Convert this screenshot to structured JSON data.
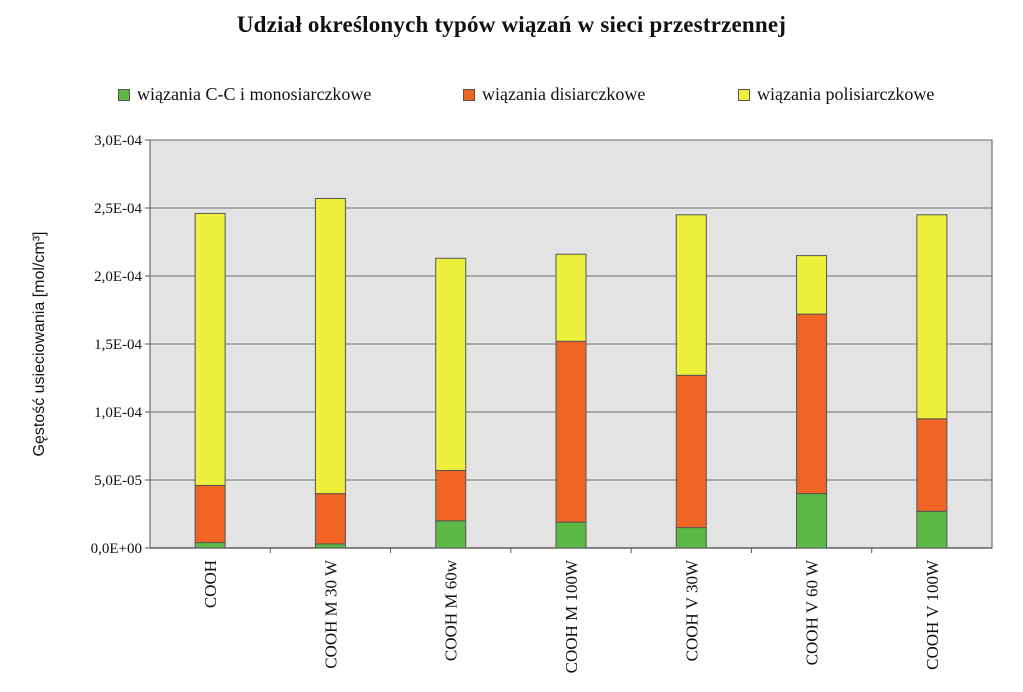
{
  "chart_data": {
    "type": "bar",
    "stacked": true,
    "title": "Udział określonych typów wiązań w sieci przestrzennej",
    "ylabel": "Gęstość usieciowania [mol/cm³]",
    "xlabel": "",
    "ylim": [
      0,
      0.0003
    ],
    "yticks": [
      {
        "value": 0,
        "label": "0,0E+00"
      },
      {
        "value": 5e-05,
        "label": "5,0E-05"
      },
      {
        "value": 0.0001,
        "label": "1,0E-04"
      },
      {
        "value": 0.00015,
        "label": "1,5E-04"
      },
      {
        "value": 0.0002,
        "label": "2,0E-04"
      },
      {
        "value": 0.00025,
        "label": "2,5E-04"
      },
      {
        "value": 0.0003,
        "label": "3,0E-04"
      }
    ],
    "categories": [
      "COOH",
      "COOH M 30 W",
      "COOH M 60w",
      "COOH M 100W",
      "COOH V 30W",
      "COOH V 60 W",
      "COOH V 100W"
    ],
    "series": [
      {
        "name": "wiązania C-C i monosiarczkowe",
        "color": "#5cb946",
        "values": [
          4e-06,
          3e-06,
          2e-05,
          1.9e-05,
          1.5e-05,
          4e-05,
          2.7e-05
        ]
      },
      {
        "name": "wiązania disiarczkowe",
        "color": "#f06424",
        "values": [
          4.2e-05,
          3.7e-05,
          3.7e-05,
          0.000133,
          0.000112,
          0.000132,
          6.8e-05
        ]
      },
      {
        "name": "wiązania polisiarczkowe",
        "color": "#eef03c",
        "values": [
          0.0002,
          0.000217,
          0.000156,
          6.4e-05,
          0.000118,
          4.3e-05,
          0.00015
        ]
      }
    ],
    "grid": true,
    "legend_position": "top",
    "plot_background": "#e3e3e3"
  }
}
